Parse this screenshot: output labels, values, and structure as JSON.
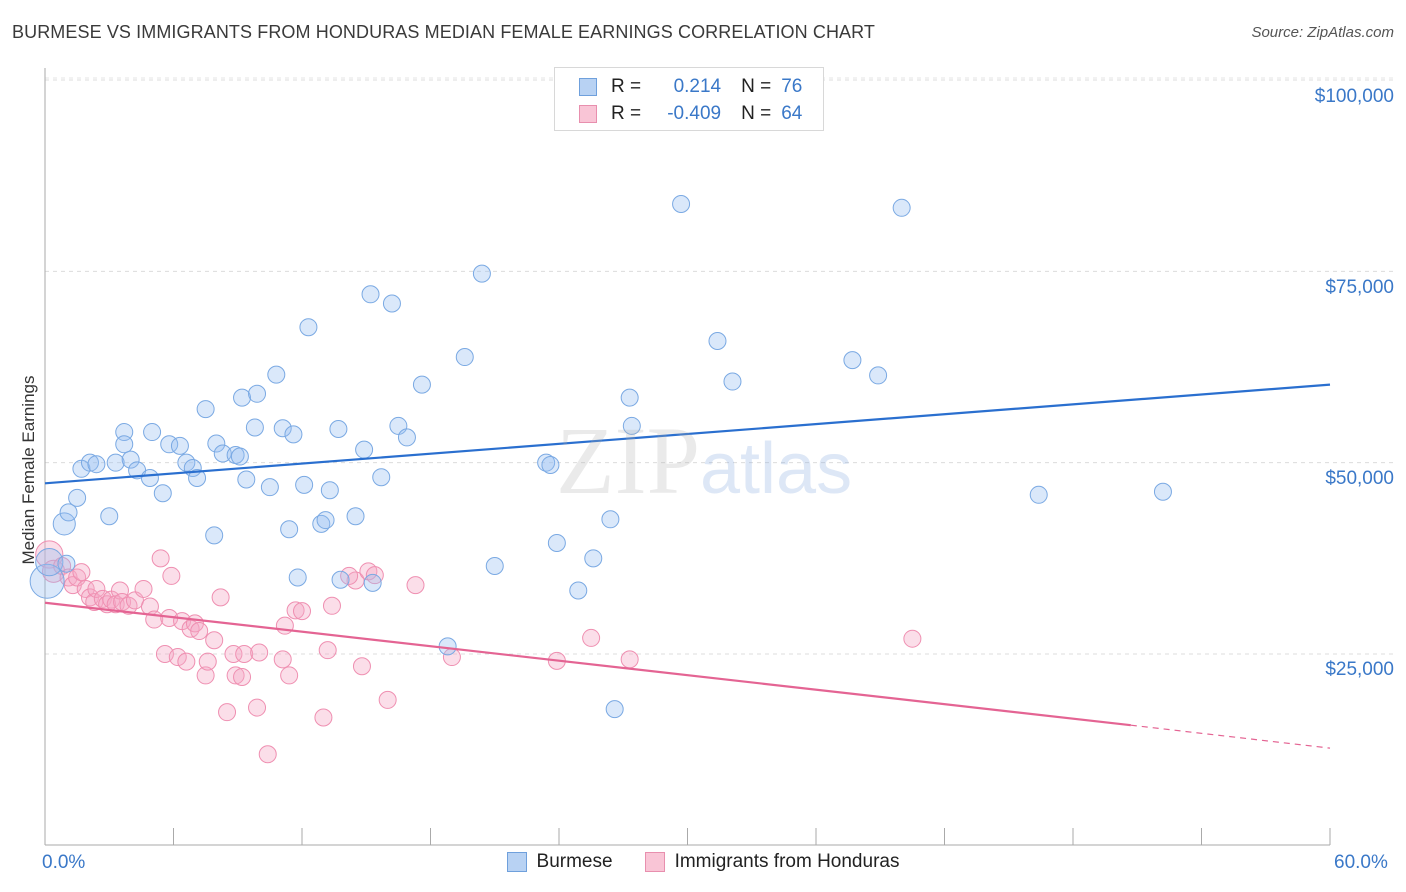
{
  "title": "BURMESE VS IMMIGRANTS FROM HONDURAS MEDIAN FEMALE EARNINGS CORRELATION CHART",
  "source": "Source: ZipAtlas.com",
  "watermark": {
    "zip": "ZIP",
    "atlas": "atlas"
  },
  "stats": [
    {
      "r_label": "R =",
      "r_value": "0.214",
      "n_label": "N =",
      "n_value": "76",
      "color": "#a9c8f0",
      "border": "#5b8fd6"
    },
    {
      "r_label": "R =",
      "r_value": "-0.409",
      "n_label": "N =",
      "n_value": "64",
      "color": "#f7bcd0",
      "border": "#e77fa3"
    }
  ],
  "legend": [
    {
      "label": "Burmese",
      "fill": "#b8d2f3",
      "stroke": "#6fa0dc"
    },
    {
      "label": "Immigrants from Honduras",
      "fill": "#f9c5d6",
      "stroke": "#e88fae"
    }
  ],
  "colors": {
    "blue_point": "#7aa9e3",
    "blue_line": "#2a6fcf",
    "pink_point": "#ef8fb1",
    "pink_line": "#e46493",
    "tick_text": "#3a78c8"
  },
  "chart_data": {
    "type": "scatter",
    "title": "BURMESE VS IMMIGRANTS FROM HONDURAS MEDIAN FEMALE EARNINGS CORRELATION CHART",
    "ylabel": "Median Female Earnings",
    "xlabel": "",
    "xlim": [
      0,
      60
    ],
    "ylim": [
      0,
      105000
    ],
    "x_tick_labels": [
      "0.0%",
      "60.0%"
    ],
    "y_ticks": [
      25000,
      50000,
      75000,
      100000
    ],
    "y_tick_labels": [
      "$25,000",
      "$50,000",
      "$75,000",
      "$100,000"
    ],
    "grid": true,
    "series": [
      {
        "name": "Burmese",
        "r": 0.214,
        "n": 76,
        "trend": {
          "x": [
            0,
            60
          ],
          "y": [
            47300,
            60200
          ]
        },
        "points": [
          [
            0.1,
            34500,
            2.0
          ],
          [
            0.2,
            37000,
            1.6
          ],
          [
            0.9,
            42000,
            1.3
          ],
          [
            1.1,
            43500,
            1.0
          ],
          [
            1.5,
            45400,
            1.0
          ],
          [
            1.7,
            49200,
            1.0
          ],
          [
            2.1,
            50000,
            1.0
          ],
          [
            2.4,
            49800,
            1.0
          ],
          [
            3.0,
            43000,
            1.0
          ],
          [
            3.3,
            50000,
            1.0
          ],
          [
            3.7,
            54000,
            1.0
          ],
          [
            3.7,
            52400,
            1.0
          ],
          [
            4.0,
            50400,
            1.0
          ],
          [
            4.3,
            49000,
            1.0
          ],
          [
            4.9,
            48000,
            1.0
          ],
          [
            5.0,
            54000,
            1.0
          ],
          [
            5.5,
            46000,
            1.0
          ],
          [
            5.8,
            52400,
            1.0
          ],
          [
            6.3,
            52200,
            1.0
          ],
          [
            6.6,
            50000,
            1.0
          ],
          [
            6.9,
            49300,
            1.0
          ],
          [
            7.1,
            48000,
            1.0
          ],
          [
            7.5,
            57000,
            1.0
          ],
          [
            7.9,
            40500,
            1.0
          ],
          [
            8.0,
            52500,
            1.0
          ],
          [
            8.3,
            51200,
            1.0
          ],
          [
            8.9,
            51000,
            1.0
          ],
          [
            9.1,
            50800,
            1.0
          ],
          [
            9.2,
            58500,
            1.0
          ],
          [
            9.4,
            47800,
            1.0
          ],
          [
            9.8,
            54600,
            1.0
          ],
          [
            9.9,
            59000,
            1.0
          ],
          [
            10.5,
            46800,
            1.0
          ],
          [
            10.8,
            61500,
            1.0
          ],
          [
            11.1,
            54500,
            1.0
          ],
          [
            11.4,
            41300,
            1.0
          ],
          [
            11.6,
            53700,
            1.0
          ],
          [
            11.8,
            35000,
            1.0
          ],
          [
            12.1,
            47100,
            1.0
          ],
          [
            12.3,
            67700,
            1.0
          ],
          [
            12.9,
            42000,
            1.0
          ],
          [
            13.1,
            42500,
            1.0
          ],
          [
            13.3,
            46400,
            1.0
          ],
          [
            13.7,
            54400,
            1.0
          ],
          [
            13.8,
            34700,
            1.0
          ],
          [
            14.5,
            43000,
            1.0
          ],
          [
            14.9,
            51700,
            1.0
          ],
          [
            15.2,
            72000,
            1.0
          ],
          [
            15.3,
            34300,
            1.0
          ],
          [
            15.7,
            48100,
            1.0
          ],
          [
            16.2,
            70800,
            1.0
          ],
          [
            16.5,
            54800,
            1.0
          ],
          [
            16.9,
            53300,
            1.0
          ],
          [
            17.6,
            60200,
            1.0
          ],
          [
            18.8,
            26000,
            1.0
          ],
          [
            19.6,
            63800,
            1.0
          ],
          [
            20.4,
            74700,
            1.0
          ],
          [
            21.0,
            36500,
            1.0
          ],
          [
            23.4,
            50000,
            1.0
          ],
          [
            23.6,
            49700,
            1.0
          ],
          [
            23.9,
            39500,
            1.0
          ],
          [
            24.9,
            33300,
            1.0
          ],
          [
            25.6,
            37500,
            1.0
          ],
          [
            26.4,
            42600,
            1.0
          ],
          [
            26.6,
            17800,
            1.0
          ],
          [
            27.3,
            58500,
            1.0
          ],
          [
            27.4,
            54800,
            1.0
          ],
          [
            29.7,
            83800,
            1.0
          ],
          [
            31.4,
            65900,
            1.0
          ],
          [
            32.1,
            60600,
            1.0
          ],
          [
            37.7,
            63400,
            1.0
          ],
          [
            38.9,
            61400,
            1.0
          ],
          [
            40.0,
            83300,
            1.0
          ],
          [
            46.4,
            45800,
            1.0
          ],
          [
            52.2,
            46200,
            1.0
          ],
          [
            1.0,
            36800,
            1.0
          ]
        ]
      },
      {
        "name": "Immigrants from Honduras",
        "r": -0.409,
        "n": 64,
        "trend": {
          "x": [
            0,
            50.7
          ],
          "y": [
            31700,
            15700
          ]
        },
        "trend_dashed": {
          "x": [
            50.7,
            60
          ],
          "y": [
            15700,
            12700
          ]
        },
        "points": [
          [
            0.2,
            38000,
            1.6
          ],
          [
            0.4,
            35800,
            1.3
          ],
          [
            0.8,
            36500,
            1.0
          ],
          [
            1.1,
            35000,
            1.0
          ],
          [
            1.3,
            34000,
            1.0
          ],
          [
            1.5,
            35000,
            1.0
          ],
          [
            1.7,
            35700,
            1.0
          ],
          [
            1.9,
            33500,
            1.0
          ],
          [
            2.1,
            32400,
            1.0
          ],
          [
            2.3,
            31800,
            1.0
          ],
          [
            2.4,
            33500,
            1.0
          ],
          [
            2.7,
            32200,
            1.0
          ],
          [
            2.9,
            31500,
            1.0
          ],
          [
            3.1,
            32100,
            1.0
          ],
          [
            3.3,
            31500,
            1.0
          ],
          [
            3.5,
            33300,
            1.0
          ],
          [
            3.6,
            31800,
            1.0
          ],
          [
            3.9,
            31300,
            1.0
          ],
          [
            4.2,
            32000,
            1.0
          ],
          [
            4.6,
            33500,
            1.0
          ],
          [
            4.9,
            31200,
            1.0
          ],
          [
            5.1,
            29500,
            1.0
          ],
          [
            5.4,
            37500,
            1.0
          ],
          [
            5.6,
            25000,
            1.0
          ],
          [
            5.8,
            29700,
            1.0
          ],
          [
            5.9,
            35200,
            1.0
          ],
          [
            6.2,
            24600,
            1.0
          ],
          [
            6.4,
            29300,
            1.0
          ],
          [
            6.6,
            24000,
            1.0
          ],
          [
            6.8,
            28300,
            1.0
          ],
          [
            7.0,
            29000,
            1.0
          ],
          [
            7.2,
            28000,
            1.0
          ],
          [
            7.5,
            22200,
            1.0
          ],
          [
            7.6,
            24000,
            1.0
          ],
          [
            7.9,
            26800,
            1.0
          ],
          [
            8.2,
            32400,
            1.0
          ],
          [
            8.5,
            17400,
            1.0
          ],
          [
            8.8,
            25000,
            1.0
          ],
          [
            8.9,
            22200,
            1.0
          ],
          [
            9.2,
            22000,
            1.0
          ],
          [
            9.3,
            25000,
            1.0
          ],
          [
            9.9,
            18000,
            1.0
          ],
          [
            10.4,
            11900,
            1.0
          ],
          [
            11.1,
            24300,
            1.0
          ],
          [
            11.2,
            28700,
            1.0
          ],
          [
            11.4,
            22200,
            1.0
          ],
          [
            11.7,
            30700,
            1.0
          ],
          [
            12.0,
            30600,
            1.0
          ],
          [
            13.0,
            16700,
            1.0
          ],
          [
            13.2,
            25500,
            1.0
          ],
          [
            13.4,
            31300,
            1.0
          ],
          [
            14.5,
            34600,
            1.0
          ],
          [
            14.8,
            23400,
            1.0
          ],
          [
            15.1,
            35800,
            1.0
          ],
          [
            15.4,
            35300,
            1.0
          ],
          [
            16.0,
            19000,
            1.0
          ],
          [
            17.3,
            34000,
            1.0
          ],
          [
            19.0,
            24600,
            1.0
          ],
          [
            23.9,
            24100,
            1.0
          ],
          [
            25.5,
            27100,
            1.0
          ],
          [
            27.3,
            24300,
            1.0
          ],
          [
            40.5,
            27000,
            1.0
          ],
          [
            14.2,
            35200,
            1.0
          ],
          [
            10.0,
            25200,
            1.0
          ]
        ]
      }
    ]
  }
}
